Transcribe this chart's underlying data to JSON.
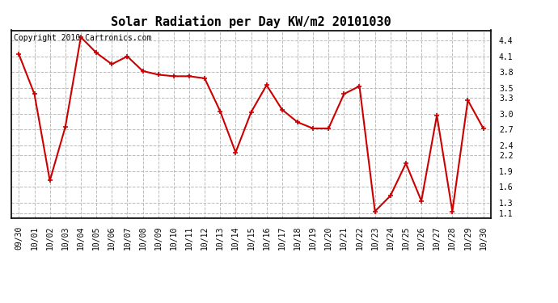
{
  "title": "Solar Radiation per Day KW/m2 20101030",
  "copyright_text": "Copyright 2010 Cartronics.com",
  "labels": [
    "09/30",
    "10/01",
    "10/02",
    "10/03",
    "10/04",
    "10/05",
    "10/06",
    "10/07",
    "10/08",
    "10/09",
    "10/10",
    "10/11",
    "10/12",
    "10/13",
    "10/14",
    "10/15",
    "10/16",
    "10/17",
    "10/18",
    "10/19",
    "10/20",
    "10/21",
    "10/22",
    "10/23",
    "10/24",
    "10/25",
    "10/26",
    "10/27",
    "10/28",
    "10/29",
    "10/30"
  ],
  "values": [
    4.14,
    3.38,
    1.72,
    2.75,
    4.47,
    4.17,
    3.95,
    4.1,
    3.82,
    3.75,
    3.72,
    3.72,
    3.68,
    3.05,
    2.26,
    3.03,
    3.55,
    3.08,
    2.84,
    2.72,
    2.72,
    3.38,
    3.53,
    1.13,
    1.43,
    2.05,
    1.33,
    2.97,
    1.13,
    3.26,
    2.72
  ],
  "line_color": "#cc0000",
  "marker": "+",
  "marker_size": 5,
  "marker_edge_width": 1.2,
  "line_width": 1.5,
  "background_color": "#ffffff",
  "plot_bg_color": "#ffffff",
  "grid_color": "#bbbbbb",
  "grid_linestyle": "--",
  "ylim": [
    1.0,
    4.6
  ],
  "yticks": [
    1.1,
    1.3,
    1.6,
    1.9,
    2.2,
    2.4,
    2.7,
    3.0,
    3.3,
    3.5,
    3.8,
    4.1,
    4.4
  ],
  "title_fontsize": 11,
  "tick_fontsize": 7,
  "copyright_fontsize": 7,
  "fig_width": 6.9,
  "fig_height": 3.75,
  "dpi": 100
}
